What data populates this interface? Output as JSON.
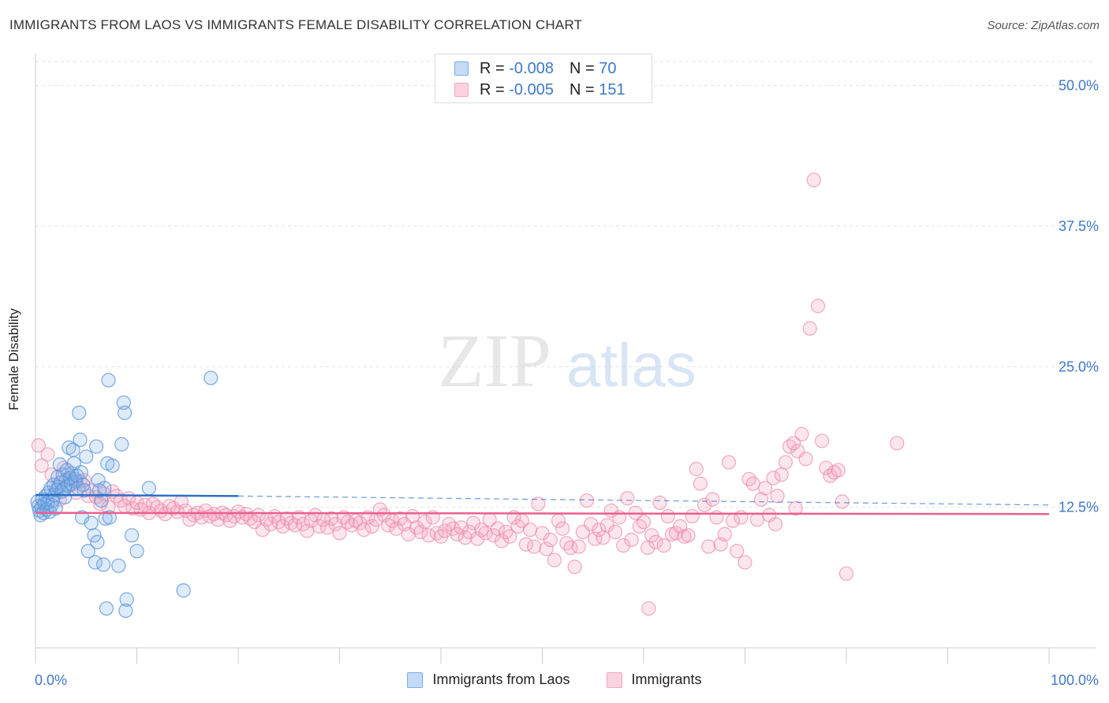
{
  "header": {
    "title": "IMMIGRANTS FROM LAOS VS IMMIGRANTS FEMALE DISABILITY CORRELATION CHART",
    "source": "Source: ZipAtlas.com"
  },
  "legend": {
    "rows": [
      {
        "r_label": "R =",
        "r_value": "-0.008",
        "n_label": "N =",
        "n_value": "70",
        "color": "#7aaee8"
      },
      {
        "r_label": "R =",
        "r_value": "-0.005",
        "n_label": "N =",
        "n_value": "151",
        "color": "#f4a6c0"
      }
    ]
  },
  "watermark": {
    "zip": "ZIP",
    "atlas": "atlas"
  },
  "chart_data": {
    "type": "scatter",
    "ylabel": "Female Disability",
    "xlim": [
      0,
      100
    ],
    "ylim": [
      0,
      52
    ],
    "x_tick_labels": [
      "0.0%",
      "100.0%"
    ],
    "y_ticks": [
      12.5,
      25.0,
      37.5,
      50.0
    ],
    "y_tick_labels": [
      "12.5%",
      "25.0%",
      "37.5%",
      "50.0%"
    ],
    "grid": true,
    "legend_position": "bottom",
    "colors": {
      "blue": "#5b93d9",
      "pink": "#ee8cad",
      "blue_line": "#2e6fc9",
      "pink_line": "#e8608e",
      "tick_label": "#3f78c9"
    },
    "series": [
      {
        "name": "Immigrants from Laos",
        "color": "#5b93d9",
        "trend": {
          "x0": 0,
          "y0": 13.6,
          "x1": 20,
          "y1": 13.5,
          "dash_to_x": 100,
          "dash_to_y": 12.7
        },
        "points": [
          [
            0.2,
            13.0
          ],
          [
            0.3,
            12.6
          ],
          [
            0.4,
            12.2
          ],
          [
            0.5,
            11.8
          ],
          [
            0.6,
            12.5
          ],
          [
            0.7,
            13.2
          ],
          [
            0.8,
            12.0
          ],
          [
            0.9,
            12.8
          ],
          [
            1.0,
            13.5
          ],
          [
            1.1,
            12.3
          ],
          [
            1.2,
            12.9
          ],
          [
            1.3,
            13.8
          ],
          [
            1.4,
            12.1
          ],
          [
            1.5,
            14.2
          ],
          [
            1.6,
            12.7
          ],
          [
            1.7,
            13.1
          ],
          [
            1.8,
            14.5
          ],
          [
            1.9,
            13.6
          ],
          [
            2.0,
            12.4
          ],
          [
            2.1,
            14.0
          ],
          [
            2.2,
            15.2
          ],
          [
            2.3,
            14.3
          ],
          [
            2.4,
            16.3
          ],
          [
            2.5,
            14.7
          ],
          [
            2.6,
            13.9
          ],
          [
            2.7,
            15.4
          ],
          [
            2.8,
            14.1
          ],
          [
            2.9,
            13.4
          ],
          [
            3.0,
            14.9
          ],
          [
            3.1,
            15.8
          ],
          [
            3.2,
            14.4
          ],
          [
            3.3,
            17.8
          ],
          [
            3.4,
            15.1
          ],
          [
            3.5,
            14.6
          ],
          [
            3.6,
            15.5
          ],
          [
            3.7,
            17.6
          ],
          [
            3.8,
            16.4
          ],
          [
            3.9,
            15.0
          ],
          [
            4.0,
            14.8
          ],
          [
            4.1,
            15.3
          ],
          [
            4.2,
            14.2
          ],
          [
            4.3,
            20.9
          ],
          [
            4.4,
            18.5
          ],
          [
            4.5,
            15.6
          ],
          [
            4.6,
            11.6
          ],
          [
            4.7,
            14.5
          ],
          [
            4.8,
            14.0
          ],
          [
            5.0,
            17.0
          ],
          [
            5.2,
            8.6
          ],
          [
            5.5,
            11.1
          ],
          [
            5.8,
            10.0
          ],
          [
            5.9,
            7.6
          ],
          [
            6.0,
            17.9
          ],
          [
            6.1,
            9.4
          ],
          [
            6.2,
            14.9
          ],
          [
            6.3,
            14.0
          ],
          [
            6.5,
            13.1
          ],
          [
            6.7,
            7.4
          ],
          [
            6.8,
            14.2
          ],
          [
            6.9,
            11.5
          ],
          [
            7.0,
            3.5
          ],
          [
            7.1,
            16.4
          ],
          [
            7.2,
            23.8
          ],
          [
            7.3,
            11.6
          ],
          [
            7.6,
            16.2
          ],
          [
            8.2,
            7.3
          ],
          [
            8.5,
            18.1
          ],
          [
            8.7,
            21.8
          ],
          [
            8.8,
            20.9
          ],
          [
            8.9,
            3.3
          ],
          [
            9.0,
            4.3
          ],
          [
            9.5,
            10.0
          ],
          [
            10.0,
            8.6
          ],
          [
            11.2,
            14.2
          ],
          [
            14.6,
            5.1
          ],
          [
            17.3,
            24.0
          ]
        ]
      },
      {
        "name": "Immigrants",
        "color": "#ee8cad",
        "trend": {
          "x0": 0,
          "y0": 12.0,
          "x1": 100,
          "y1": 11.9
        },
        "points": [
          [
            0.3,
            18.0
          ],
          [
            0.6,
            16.2
          ],
          [
            1.2,
            17.2
          ],
          [
            1.6,
            15.4
          ],
          [
            2.0,
            14.2
          ],
          [
            2.4,
            13.2
          ],
          [
            2.8,
            16.0
          ],
          [
            3.2,
            15.0
          ],
          [
            3.6,
            14.5
          ],
          [
            4.0,
            13.8
          ],
          [
            4.4,
            14.8
          ],
          [
            4.8,
            14.9
          ],
          [
            5.2,
            13.5
          ],
          [
            5.6,
            14.0
          ],
          [
            6.0,
            13.4
          ],
          [
            6.4,
            12.8
          ],
          [
            6.8,
            13.7
          ],
          [
            7.2,
            12.5
          ],
          [
            7.6,
            13.9
          ],
          [
            8.0,
            13.5
          ],
          [
            8.4,
            13.1
          ],
          [
            8.8,
            12.6
          ],
          [
            9.2,
            13.3
          ],
          [
            9.6,
            12.4
          ],
          [
            10.0,
            12.9
          ],
          [
            10.4,
            12.3
          ],
          [
            10.8,
            12.7
          ],
          [
            11.2,
            12.0
          ],
          [
            11.6,
            12.8
          ],
          [
            12.0,
            12.5
          ],
          [
            12.4,
            12.2
          ],
          [
            12.8,
            11.9
          ],
          [
            13.2,
            12.6
          ],
          [
            13.6,
            12.4
          ],
          [
            14.0,
            12.1
          ],
          [
            14.4,
            13.0
          ],
          [
            14.8,
            12.2
          ],
          [
            15.2,
            11.4
          ],
          [
            15.6,
            11.8
          ],
          [
            16.0,
            12.0
          ],
          [
            16.4,
            11.6
          ],
          [
            16.8,
            12.2
          ],
          [
            17.2,
            11.7
          ],
          [
            17.6,
            11.9
          ],
          [
            18.0,
            11.4
          ],
          [
            18.4,
            12.0
          ],
          [
            18.8,
            11.8
          ],
          [
            19.2,
            11.3
          ],
          [
            19.6,
            11.7
          ],
          [
            20.0,
            12.1
          ],
          [
            20.4,
            11.6
          ],
          [
            20.8,
            11.9
          ],
          [
            21.2,
            11.5
          ],
          [
            21.6,
            11.2
          ],
          [
            22.0,
            11.8
          ],
          [
            22.4,
            10.5
          ],
          [
            22.8,
            11.4
          ],
          [
            23.2,
            11.0
          ],
          [
            23.6,
            11.7
          ],
          [
            24.0,
            11.2
          ],
          [
            24.4,
            10.8
          ],
          [
            24.8,
            11.5
          ],
          [
            25.2,
            11.1
          ],
          [
            25.6,
            10.9
          ],
          [
            26.0,
            11.6
          ],
          [
            26.4,
            11.0
          ],
          [
            26.8,
            10.4
          ],
          [
            27.2,
            11.3
          ],
          [
            27.6,
            11.8
          ],
          [
            28.0,
            10.8
          ],
          [
            28.4,
            11.4
          ],
          [
            28.8,
            10.7
          ],
          [
            29.2,
            11.5
          ],
          [
            29.6,
            11.0
          ],
          [
            30.0,
            10.2
          ],
          [
            30.4,
            11.6
          ],
          [
            30.8,
            11.2
          ],
          [
            31.2,
            10.9
          ],
          [
            31.6,
            11.3
          ],
          [
            32.0,
            11.1
          ],
          [
            32.4,
            10.5
          ],
          [
            32.8,
            11.6
          ],
          [
            33.2,
            10.8
          ],
          [
            33.6,
            11.4
          ],
          [
            34.0,
            12.3
          ],
          [
            34.4,
            11.8
          ],
          [
            34.8,
            10.9
          ],
          [
            35.2,
            11.3
          ],
          [
            35.6,
            10.6
          ],
          [
            36.0,
            11.5
          ],
          [
            36.4,
            11.0
          ],
          [
            36.8,
            10.1
          ],
          [
            37.2,
            11.7
          ],
          [
            37.6,
            10.7
          ],
          [
            38.0,
            10.3
          ],
          [
            38.4,
            11.2
          ],
          [
            38.8,
            10.0
          ],
          [
            39.2,
            11.6
          ],
          [
            39.6,
            10.2
          ],
          [
            40.0,
            9.9
          ],
          [
            40.4,
            10.4
          ],
          [
            40.8,
            11.0
          ],
          [
            41.2,
            10.6
          ],
          [
            41.6,
            10.1
          ],
          [
            42.0,
            10.7
          ],
          [
            42.4,
            9.8
          ],
          [
            42.8,
            10.3
          ],
          [
            43.2,
            11.1
          ],
          [
            43.6,
            9.7
          ],
          [
            44.0,
            10.5
          ],
          [
            44.4,
            10.2
          ],
          [
            44.8,
            11.4
          ],
          [
            45.2,
            10.0
          ],
          [
            45.6,
            10.6
          ],
          [
            46.0,
            9.5
          ],
          [
            46.4,
            10.3
          ],
          [
            46.8,
            9.9
          ],
          [
            47.2,
            11.6
          ],
          [
            47.6,
            10.8
          ],
          [
            48.0,
            11.3
          ],
          [
            48.4,
            9.2
          ],
          [
            48.8,
            10.5
          ],
          [
            49.2,
            9.0
          ],
          [
            49.6,
            12.8
          ],
          [
            50.0,
            10.2
          ],
          [
            50.4,
            8.8
          ],
          [
            50.8,
            9.6
          ],
          [
            51.2,
            7.8
          ],
          [
            51.6,
            11.3
          ],
          [
            52.0,
            10.6
          ],
          [
            52.4,
            9.3
          ],
          [
            52.8,
            8.9
          ],
          [
            53.2,
            7.2
          ],
          [
            53.6,
            9.0
          ],
          [
            54.0,
            10.3
          ],
          [
            54.4,
            13.1
          ],
          [
            54.8,
            11.0
          ],
          [
            55.2,
            9.7
          ],
          [
            55.6,
            10.5
          ],
          [
            56.0,
            9.8
          ],
          [
            56.4,
            10.9
          ],
          [
            56.8,
            12.2
          ],
          [
            57.2,
            10.3
          ],
          [
            57.6,
            11.6
          ],
          [
            58.0,
            9.1
          ],
          [
            58.4,
            13.3
          ],
          [
            58.8,
            9.6
          ],
          [
            59.2,
            12.0
          ],
          [
            59.6,
            10.8
          ],
          [
            60.0,
            11.2
          ],
          [
            60.4,
            8.9
          ],
          [
            60.8,
            10.0
          ],
          [
            61.2,
            9.4
          ],
          [
            61.6,
            12.9
          ],
          [
            62.0,
            9.1
          ],
          [
            62.4,
            11.7
          ],
          [
            62.8,
            10.1
          ],
          [
            63.2,
            10.2
          ],
          [
            63.6,
            10.8
          ],
          [
            64.0,
            9.9
          ],
          [
            64.4,
            10.0
          ],
          [
            64.8,
            11.7
          ],
          [
            65.2,
            15.9
          ],
          [
            65.6,
            14.6
          ],
          [
            66.0,
            12.7
          ],
          [
            66.4,
            9.0
          ],
          [
            66.8,
            13.2
          ],
          [
            67.2,
            11.6
          ],
          [
            67.6,
            9.2
          ],
          [
            68.0,
            10.1
          ],
          [
            68.4,
            16.5
          ],
          [
            68.8,
            11.3
          ],
          [
            69.2,
            8.6
          ],
          [
            69.6,
            11.6
          ],
          [
            70.0,
            7.6
          ],
          [
            70.4,
            15.0
          ],
          [
            70.8,
            14.6
          ],
          [
            71.2,
            11.4
          ],
          [
            71.6,
            13.2
          ],
          [
            72.0,
            14.2
          ],
          [
            72.4,
            11.8
          ],
          [
            72.8,
            15.1
          ],
          [
            73.2,
            13.5
          ],
          [
            73.6,
            15.4
          ],
          [
            74.0,
            16.5
          ],
          [
            74.4,
            17.9
          ],
          [
            74.8,
            18.2
          ],
          [
            75.2,
            17.5
          ],
          [
            75.6,
            19.0
          ],
          [
            76.0,
            16.8
          ],
          [
            76.4,
            28.4
          ],
          [
            76.8,
            41.6
          ],
          [
            77.2,
            30.4
          ],
          [
            77.6,
            18.4
          ],
          [
            78.0,
            16.0
          ],
          [
            78.4,
            15.3
          ],
          [
            78.8,
            15.6
          ],
          [
            79.2,
            15.8
          ],
          [
            79.6,
            13.0
          ],
          [
            80.0,
            6.6
          ],
          [
            85.0,
            18.2
          ],
          [
            60.5,
            3.5
          ],
          [
            75.0,
            12.4
          ],
          [
            73.0,
            11.0
          ]
        ]
      }
    ]
  }
}
